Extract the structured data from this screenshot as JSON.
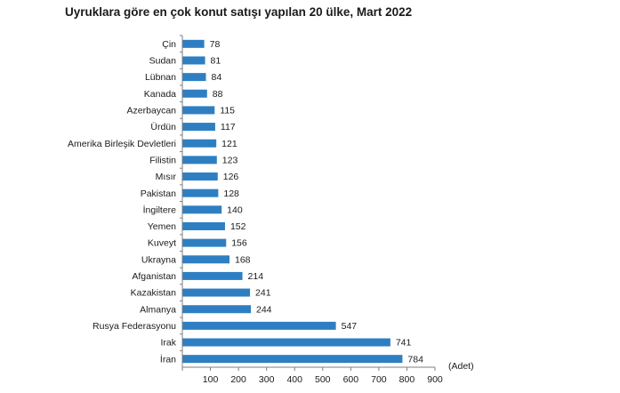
{
  "chart_data": {
    "type": "bar",
    "orientation": "horizontal",
    "title": "Uyruklara göre en çok konut satışı yapılan 20 ülke, Mart 2022",
    "categories": [
      "Çin",
      "Sudan",
      "Lübnan",
      "Kanada",
      "Azerbaycan",
      "Ürdün",
      "Amerika Birleşik Devletleri",
      "Filistin",
      "Mısır",
      "Pakistan",
      "İngiltere",
      "Yemen",
      "Kuveyt",
      "Ukrayna",
      "Afganistan",
      "Kazakistan",
      "Almanya",
      "Rusya Federasyonu",
      "Irak",
      "İran"
    ],
    "values": [
      78,
      81,
      84,
      88,
      115,
      117,
      121,
      123,
      126,
      128,
      140,
      152,
      156,
      168,
      214,
      241,
      244,
      547,
      741,
      784
    ],
    "xticks": [
      "100",
      "200",
      "300",
      "400",
      "500",
      "600",
      "700",
      "800",
      "900"
    ],
    "xlim": [
      0,
      900
    ],
    "unit_label": "(Adet)",
    "bar_color": "#2e7fc2",
    "grid": false,
    "legend": "none"
  }
}
